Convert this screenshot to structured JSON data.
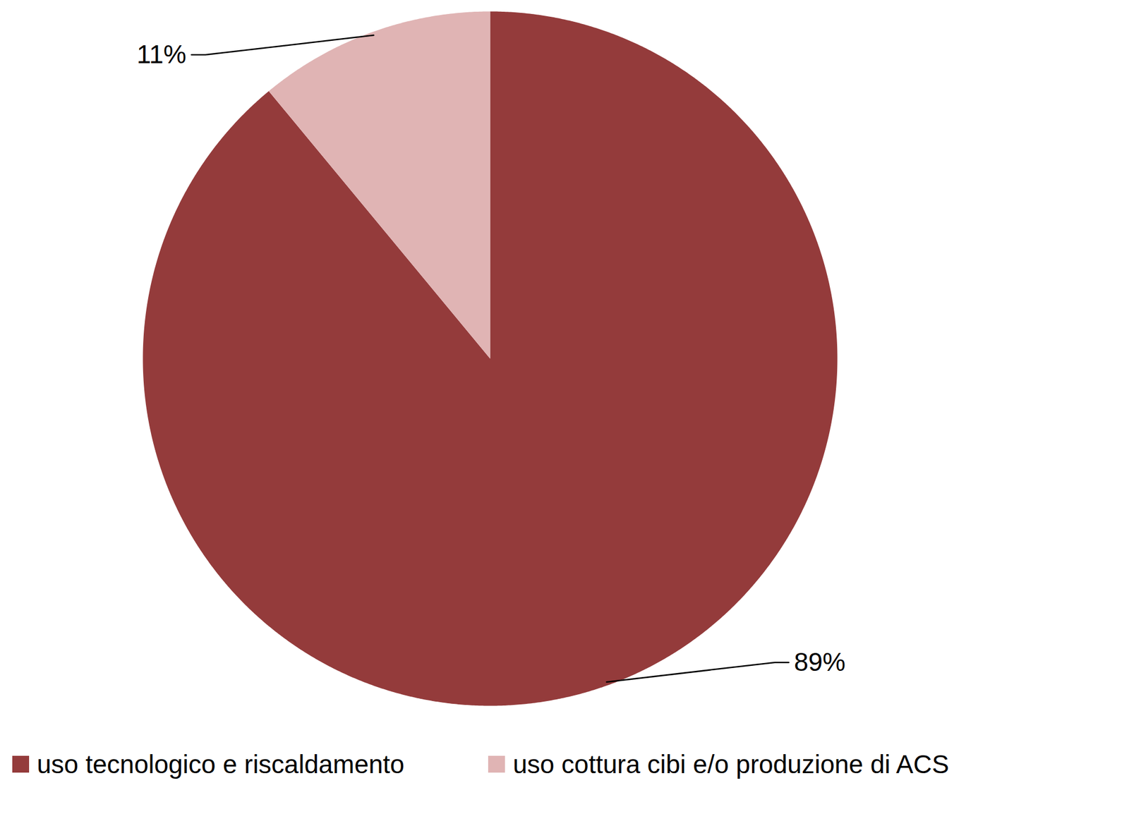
{
  "chart_data": {
    "type": "pie",
    "categories": [
      "uso tecnologico e riscaldamento",
      "uso cottura cibi e/o produzione di ACS"
    ],
    "values": [
      89,
      11
    ],
    "value_labels": [
      "89%",
      "11%"
    ],
    "colors": [
      "#943b3b",
      "#e0b4b4"
    ],
    "data_labels": true,
    "legend": "bottom"
  }
}
